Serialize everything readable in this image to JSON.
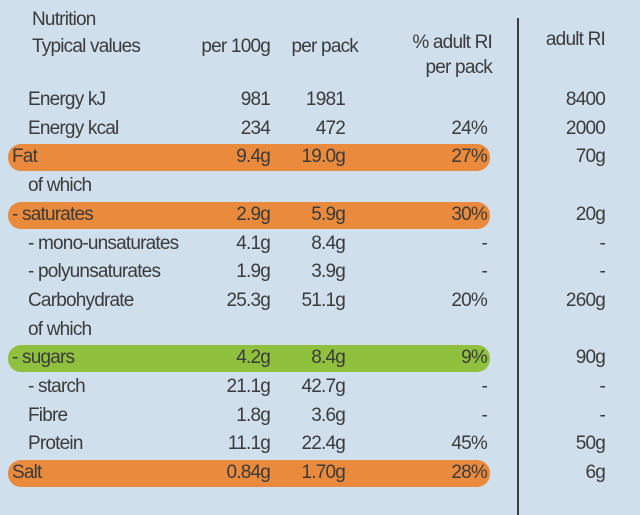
{
  "header": {
    "title": "Nutrition",
    "subtitle": "Typical values",
    "columns": [
      "per 100g",
      "per pack",
      "% adult RI",
      "per pack",
      "adult RI"
    ]
  },
  "table": {
    "rows": [
      {
        "cells": [
          "Energy kJ",
          "981",
          "1981",
          null,
          "8400"
        ]
      },
      {
        "cells": [
          "Energy kcal",
          "234",
          "472",
          "24%",
          "2000"
        ]
      },
      {
        "cells": [
          "Fat",
          "9.4g",
          "19.0g",
          "27%",
          "70g"
        ],
        "color": "#e98a3c"
      },
      {
        "cells": [
          "of which",
          null,
          null,
          null,
          null
        ]
      },
      {
        "cells": [
          "- saturates",
          "2.9g",
          "5.9g",
          "30%",
          "20g"
        ],
        "color": "#e98a3c"
      },
      {
        "cells": [
          "- mono-unsaturates",
          "4.1g",
          "8.4g",
          "-",
          "-"
        ]
      },
      {
        "cells": [
          "- polyunsaturates",
          "1.9g",
          "3.9g",
          "-",
          "-"
        ]
      },
      {
        "cells": [
          "Carbohydrate",
          "25.3g",
          "51.1g",
          "20%",
          "260g"
        ]
      },
      {
        "cells": [
          "of which",
          null,
          null,
          null,
          null
        ]
      },
      {
        "cells": [
          "- sugars",
          "4.2g",
          "8.4g",
          "9%",
          "90g"
        ],
        "color": "#8fc13e"
      },
      {
        "cells": [
          "- starch",
          "21.1g",
          "42.7g",
          "-",
          "-"
        ]
      },
      {
        "cells": [
          "Fibre",
          "1.8g",
          "3.6g",
          "-",
          "-"
        ]
      },
      {
        "cells": [
          "Protein",
          "11.1g",
          "22.4g",
          "45%",
          "50g"
        ]
      },
      {
        "cells": [
          "Salt",
          "0.84g",
          "1.70g",
          "28%",
          "6g"
        ],
        "color": "#e98a3c"
      }
    ]
  }
}
